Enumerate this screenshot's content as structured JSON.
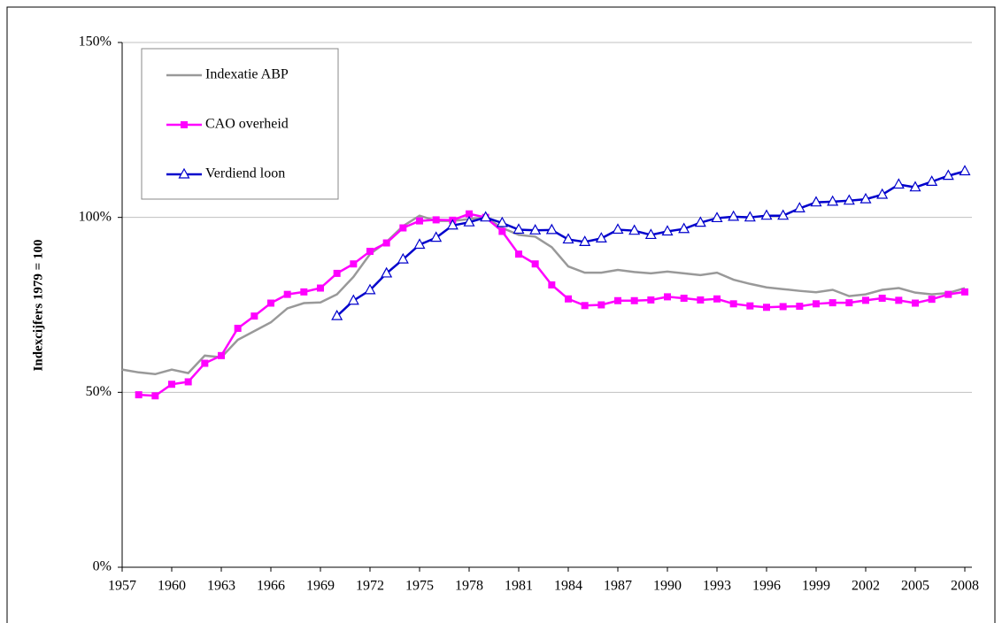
{
  "chart_data": {
    "type": "line",
    "y_label": "Indexcijfers 1979 = 100",
    "x": [
      1957,
      1958,
      1959,
      1960,
      1961,
      1962,
      1963,
      1964,
      1965,
      1966,
      1967,
      1968,
      1969,
      1970,
      1971,
      1972,
      1973,
      1974,
      1975,
      1976,
      1977,
      1978,
      1979,
      1980,
      1981,
      1982,
      1983,
      1984,
      1985,
      1986,
      1987,
      1988,
      1989,
      1990,
      1991,
      1992,
      1993,
      1994,
      1995,
      1996,
      1997,
      1998,
      1999,
      2000,
      2001,
      2002,
      2003,
      2004,
      2005,
      2006,
      2007,
      2008
    ],
    "xlim": [
      1957,
      2008
    ],
    "xticks": [
      1957,
      1960,
      1963,
      1966,
      1969,
      1972,
      1975,
      1978,
      1981,
      1984,
      1987,
      1990,
      1993,
      1996,
      1999,
      2002,
      2005,
      2008
    ],
    "ylim": [
      0,
      150
    ],
    "yticks": [
      {
        "value": 0,
        "label": "0%"
      },
      {
        "value": 50,
        "label": "50%"
      },
      {
        "value": 100,
        "label": "100%"
      },
      {
        "value": 150,
        "label": "150%"
      }
    ],
    "grid": true,
    "legend": "top-left",
    "series": [
      {
        "name": "Indexatie ABP",
        "color": "#999999",
        "marker": "none",
        "values": [
          56.5,
          55.7,
          55.2,
          56.5,
          55.5,
          60.5,
          60,
          65,
          67.5,
          70,
          74,
          75.5,
          75.7,
          78,
          83,
          89.5,
          93,
          97.5,
          100.5,
          99,
          99,
          99.5,
          100,
          97,
          95,
          94.5,
          91.5,
          86,
          84.2,
          84.2,
          85,
          84.4,
          84,
          84.5,
          84,
          83.5,
          84.2,
          82.2,
          81,
          80,
          79.5,
          79,
          78.6,
          79.3,
          77.5,
          78,
          79.3,
          79.8,
          78.5,
          78,
          78.4,
          79.8
        ]
      },
      {
        "name": "CAO overheid",
        "color": "#ff00ff",
        "marker": "square",
        "values": [
          null,
          49.3,
          49,
          52.3,
          53,
          58.3,
          60.5,
          68.3,
          71.8,
          75.5,
          78,
          78.7,
          79.8,
          84,
          86.7,
          90.3,
          92.7,
          97,
          99,
          99.3,
          99.2,
          101,
          100,
          96,
          89.5,
          86.7,
          80.7,
          76.7,
          74.8,
          75,
          76.2,
          76.2,
          76.4,
          77.3,
          76.9,
          76.4,
          76.7,
          75.3,
          74.7,
          74.3,
          74.5,
          74.6,
          75.3,
          75.6,
          75.6,
          76.3,
          76.9,
          76.3,
          75.5,
          76.6,
          78,
          78.7
        ]
      },
      {
        "name": "Verdiend loon",
        "color": "#0000cc",
        "marker": "triangle",
        "values": [
          null,
          null,
          null,
          null,
          null,
          null,
          null,
          null,
          null,
          null,
          null,
          null,
          null,
          71.8,
          76.2,
          79.2,
          84,
          88,
          92.2,
          94.2,
          97.7,
          98.6,
          100,
          98.4,
          96.5,
          96.3,
          96.4,
          93.7,
          93,
          94,
          96.5,
          96.2,
          95,
          96,
          96.7,
          98.5,
          99.8,
          100.2,
          100,
          100.5,
          100.5,
          102.6,
          104.3,
          104.5,
          104.8,
          105.2,
          106.5,
          109.4,
          108.6,
          110.2,
          111.9,
          113.2
        ]
      }
    ]
  }
}
